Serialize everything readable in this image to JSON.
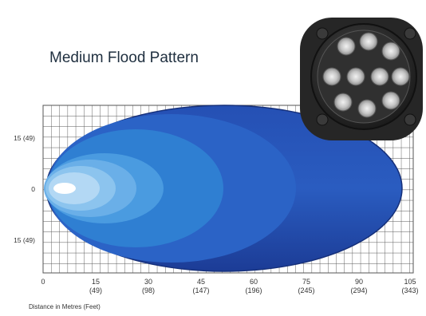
{
  "title": "Medium Flood Pattern",
  "axis_caption": "Distance in Metres (Feet)",
  "x_ticks": [
    {
      "metres": "0",
      "feet": ""
    },
    {
      "metres": "15",
      "feet": "(49)"
    },
    {
      "metres": "30",
      "feet": "(98)"
    },
    {
      "metres": "45",
      "feet": "(147)"
    },
    {
      "metres": "60",
      "feet": "(196)"
    },
    {
      "metres": "75",
      "feet": "(245)"
    },
    {
      "metres": "90",
      "feet": "(294)"
    },
    {
      "metres": "105",
      "feet": "(343)"
    }
  ],
  "y_ticks": [
    "15 (49)",
    "0",
    "15 (49)"
  ],
  "colors": {
    "grid": "#555555",
    "outer_beam": "#1f3f9a",
    "beam_mid": "#2a63c4",
    "beam_inner": "#2f8bd6",
    "beam_core": "#8cc4ec",
    "hotspot": "#ffffff",
    "fixture_body": "#2b2b2b",
    "led": "#c9c9c9"
  },
  "icons": {
    "product_image": "led-floodlight-icon"
  }
}
